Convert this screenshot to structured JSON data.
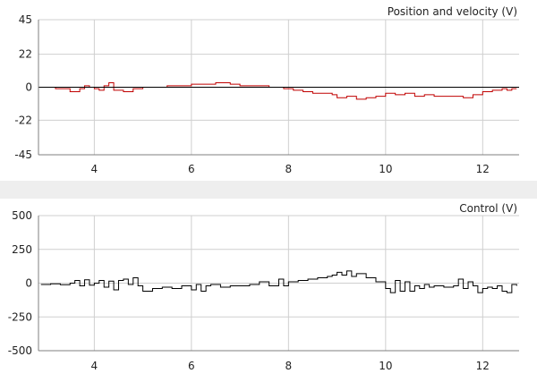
{
  "window": {
    "panels": [
      {
        "key": "top",
        "title": "Position and velocity (V)"
      },
      {
        "key": "bottom",
        "title": "Control (V)"
      }
    ]
  },
  "chart_data": [
    {
      "type": "line",
      "title": "Position and velocity (V)",
      "xlim": [
        2.85,
        12.75
      ],
      "ylim": [
        -45,
        45
      ],
      "xticks": [
        4,
        6,
        8,
        10,
        12
      ],
      "yticks": [
        45,
        22,
        0,
        -22,
        -45
      ],
      "grid": true,
      "zero_line": true,
      "series": [
        {
          "color": "#c00000",
          "x": [
            2.9,
            3.2,
            3.5,
            3.7,
            3.8,
            3.9,
            4.0,
            4.1,
            4.2,
            4.3,
            4.4,
            4.6,
            4.8,
            5.0,
            5.2,
            5.5,
            5.8,
            6.0,
            6.3,
            6.5,
            6.8,
            7.0,
            7.3,
            7.6,
            7.9,
            8.1,
            8.3,
            8.5,
            8.7,
            8.9,
            9.0,
            9.2,
            9.4,
            9.6,
            9.8,
            10.0,
            10.2,
            10.4,
            10.6,
            10.8,
            11.0,
            11.2,
            11.4,
            11.6,
            11.8,
            12.0,
            12.2,
            12.4,
            12.5,
            12.6,
            12.7
          ],
          "values": [
            0,
            -1,
            -3,
            -1,
            1,
            0,
            -1,
            -2,
            1,
            3,
            -2,
            -3,
            -1,
            0,
            0,
            1,
            1,
            2,
            2,
            3,
            2,
            1,
            1,
            0,
            -1,
            -2,
            -3,
            -4,
            -4,
            -5,
            -7,
            -6,
            -8,
            -7,
            -6,
            -4,
            -5,
            -4,
            -6,
            -5,
            -6,
            -6,
            -6,
            -7,
            -5,
            -3,
            -2,
            -1,
            -2,
            -1,
            -1
          ]
        }
      ]
    },
    {
      "type": "line",
      "title": "Control (V)",
      "xlim": [
        2.85,
        12.75
      ],
      "ylim": [
        -500,
        500
      ],
      "xticks": [
        4,
        6,
        8,
        10,
        12
      ],
      "yticks": [
        500,
        250,
        0,
        -250,
        -500
      ],
      "grid": true,
      "zero_line": false,
      "series": [
        {
          "color": "#000000",
          "x": [
            2.9,
            3.1,
            3.3,
            3.5,
            3.6,
            3.7,
            3.8,
            3.9,
            4.0,
            4.1,
            4.2,
            4.3,
            4.4,
            4.5,
            4.6,
            4.7,
            4.8,
            4.9,
            5.0,
            5.2,
            5.4,
            5.6,
            5.8,
            6.0,
            6.1,
            6.2,
            6.3,
            6.4,
            6.6,
            6.8,
            7.0,
            7.2,
            7.4,
            7.6,
            7.8,
            7.9,
            8.0,
            8.2,
            8.4,
            8.6,
            8.8,
            8.9,
            9.0,
            9.1,
            9.2,
            9.3,
            9.4,
            9.6,
            9.8,
            10.0,
            10.1,
            10.2,
            10.3,
            10.4,
            10.5,
            10.6,
            10.7,
            10.8,
            10.9,
            11.0,
            11.2,
            11.4,
            11.5,
            11.6,
            11.7,
            11.8,
            11.9,
            12.0,
            12.1,
            12.2,
            12.3,
            12.4,
            12.5,
            12.6,
            12.7
          ],
          "values": [
            -10,
            -5,
            -12,
            0,
            20,
            -20,
            25,
            -15,
            0,
            20,
            -30,
            15,
            -50,
            20,
            30,
            -10,
            40,
            -20,
            -60,
            -40,
            -30,
            -40,
            -20,
            -50,
            -10,
            -60,
            -20,
            -10,
            -30,
            -20,
            -20,
            -10,
            10,
            -20,
            30,
            -20,
            10,
            20,
            30,
            40,
            50,
            60,
            80,
            60,
            90,
            50,
            70,
            40,
            10,
            -40,
            -70,
            20,
            -60,
            10,
            -60,
            -20,
            -40,
            -10,
            -30,
            -20,
            -30,
            -20,
            30,
            -40,
            10,
            -20,
            -70,
            -40,
            -30,
            -40,
            -20,
            -60,
            -70,
            -10,
            -20
          ]
        }
      ]
    }
  ]
}
